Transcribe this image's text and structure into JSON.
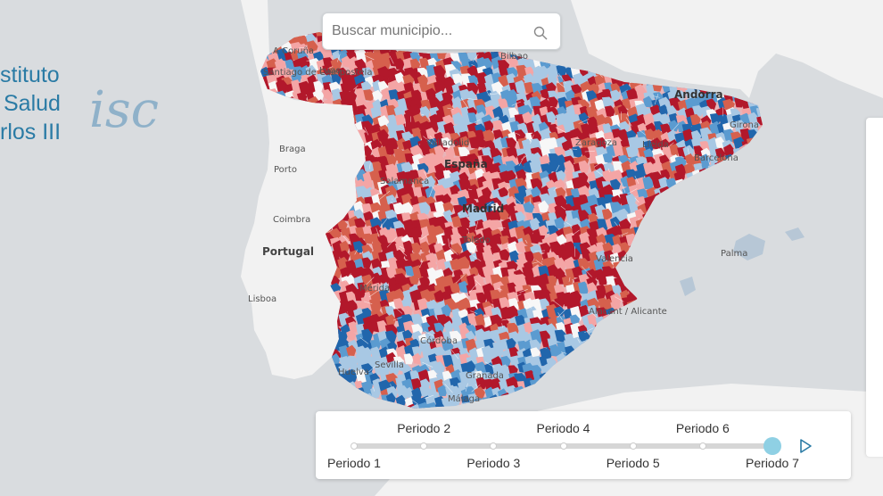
{
  "search": {
    "placeholder": "Buscar municipio..."
  },
  "logo": {
    "line1": "stituto",
    "line2": "Salud",
    "line3": "rlos III",
    "mark": "isc"
  },
  "map_labels": {
    "a_coruna": "A Coruña",
    "lugo": "Lugo",
    "santiago": "Santiago de Compostela",
    "bilbao": "Bilbao",
    "andorra": "Andorra",
    "braga": "Braga",
    "porto": "Porto",
    "valladolid": "Valladolid",
    "zaragoza": "Zaragoza",
    "lleida": "Lleida",
    "girona": "Girona",
    "barcelona": "Barcelona",
    "espana": "España",
    "salamanca": "Salamanca",
    "madrid": "Madrid",
    "coimbra": "Coimbra",
    "toledo": "Toledo",
    "portugal": "Portugal",
    "palma": "Palma",
    "valencia": "Valencia",
    "lisboa": "Lisboa",
    "merida": "Mérida",
    "alicante": "Alacant / Alicante",
    "cordoba": "Córdoba",
    "sevilla": "Sevilla",
    "huelva": "Huelva",
    "granada": "Granada",
    "malaga": "Málaga"
  },
  "timeline": {
    "periods": [
      "Periodo 1",
      "Periodo 2",
      "Periodo 3",
      "Periodo 4",
      "Periodo 5",
      "Periodo 6",
      "Periodo 7"
    ],
    "selected_index": 6
  },
  "colors": {
    "dark_red": "#b2182b",
    "red": "#d6604d",
    "light_red": "#f4a5a5",
    "pale": "#f7f7f7",
    "light_blue": "#a8c8e4",
    "blue": "#5b9bd0",
    "dark_blue": "#2166ac",
    "accent": "#8fd0e4"
  }
}
